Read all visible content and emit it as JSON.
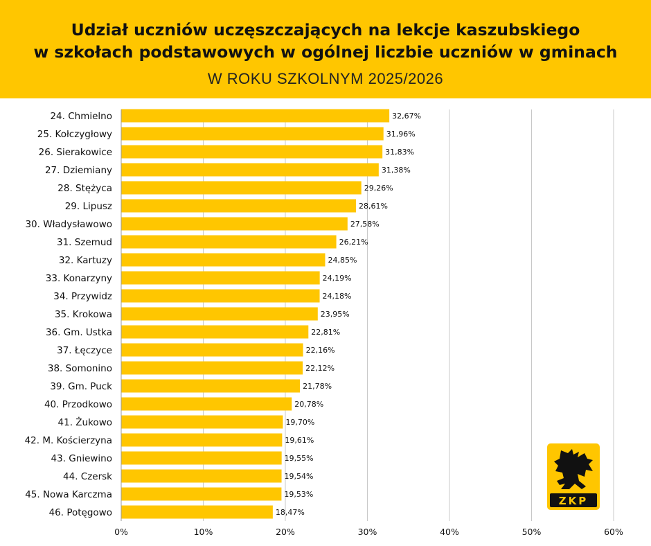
{
  "header": {
    "title_line1": "Udział uczniów uczęszczających na lekcje kaszubskiego",
    "title_line2": "w szkołach podstawowych w ogólnej liczbie uczniów w gminach",
    "subtitle": "W ROKU SZKOLNYM 2025/2026"
  },
  "logo": {
    "text": "ZKP",
    "icon": "griffin-icon",
    "bg_color": "#ffc600",
    "fg_color": "#111111"
  },
  "colors": {
    "bar": "#ffc600",
    "header_bg": "#ffc600",
    "grid": "#c8c8c8"
  },
  "chart_data": {
    "type": "bar",
    "orientation": "horizontal",
    "categories": [
      "24. Chmielno",
      "25. Kołczygłowy",
      "26. Sierakowice",
      "27. Dziemiany",
      "28. Stężyca",
      "29. Lipusz",
      "30. Władysławowo",
      "31. Szemud",
      "32. Kartuzy",
      "33. Konarzyny",
      "34. Przywidz",
      "35. Krokowa",
      "36. Gm. Ustka",
      "37. Łęczyce",
      "38. Somonino",
      "39. Gm. Puck",
      "40. Przodkowo",
      "41. Żukowo",
      "42. M. Kościerzyna",
      "43. Gniewino",
      "44. Czersk",
      "45. Nowa Karczma",
      "46. Potęgowo"
    ],
    "values": [
      32.67,
      31.96,
      31.83,
      31.38,
      29.26,
      28.61,
      27.58,
      26.21,
      24.85,
      24.19,
      24.18,
      23.95,
      22.81,
      22.16,
      22.12,
      21.78,
      20.78,
      19.7,
      19.61,
      19.55,
      19.54,
      19.53,
      18.47
    ],
    "value_labels": [
      "32,67%",
      "31,96%",
      "31,83%",
      "31,38%",
      "29,26%",
      "28,61%",
      "27,58%",
      "26,21%",
      "24,85%",
      "24,19%",
      "24,18%",
      "23,95%",
      "22,81%",
      "22,16%",
      "22,12%",
      "21,78%",
      "20,78%",
      "19,70%",
      "19,61%",
      "19,55%",
      "19,54%",
      "19,53%",
      "18,47%"
    ],
    "xlim": [
      0,
      60
    ],
    "xticks": [
      0,
      10,
      20,
      30,
      40,
      50,
      60
    ],
    "xtick_labels": [
      "0%",
      "10%",
      "20%",
      "30%",
      "40%",
      "50%",
      "60%"
    ],
    "grid": "vertical",
    "legend": "none",
    "title": "",
    "xlabel": "",
    "ylabel": ""
  }
}
